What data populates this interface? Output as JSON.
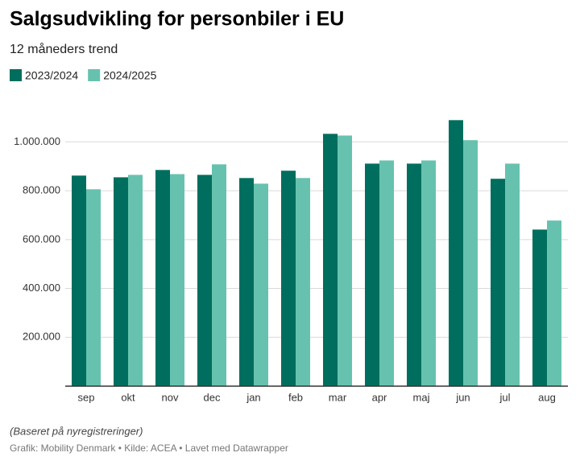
{
  "chart_data": {
    "type": "bar",
    "title": "Salgsudvikling for personbiler i EU",
    "subtitle": "12 måneders trend",
    "categories": [
      "sep",
      "okt",
      "nov",
      "dec",
      "jan",
      "feb",
      "mar",
      "apr",
      "maj",
      "jun",
      "jul",
      "aug"
    ],
    "series": [
      {
        "name": "2023/2024",
        "color": "#006e5e",
        "values": [
          862000,
          855000,
          885000,
          865000,
          852000,
          882000,
          1033000,
          911000,
          911000,
          1089000,
          849000,
          641000
        ]
      },
      {
        "name": "2024/2025",
        "color": "#66c2ae",
        "values": [
          806000,
          865000,
          868000,
          908000,
          829000,
          852000,
          1026000,
          924000,
          924000,
          1007000,
          911000,
          678000
        ]
      }
    ],
    "ylim": [
      0,
      1100000
    ],
    "yticks": [
      {
        "value": 200000,
        "label": "200.000"
      },
      {
        "value": 400000,
        "label": "400.000"
      },
      {
        "value": 600000,
        "label": "600.000"
      },
      {
        "value": 800000,
        "label": "800.000"
      },
      {
        "value": 1000000,
        "label": "1.000.000"
      }
    ],
    "grid": true,
    "note": "(Baseret på nyregistreringer)",
    "source": "Grafik: Mobility Denmark • Kilde: ACEA • Lavet med Datawrapper"
  }
}
